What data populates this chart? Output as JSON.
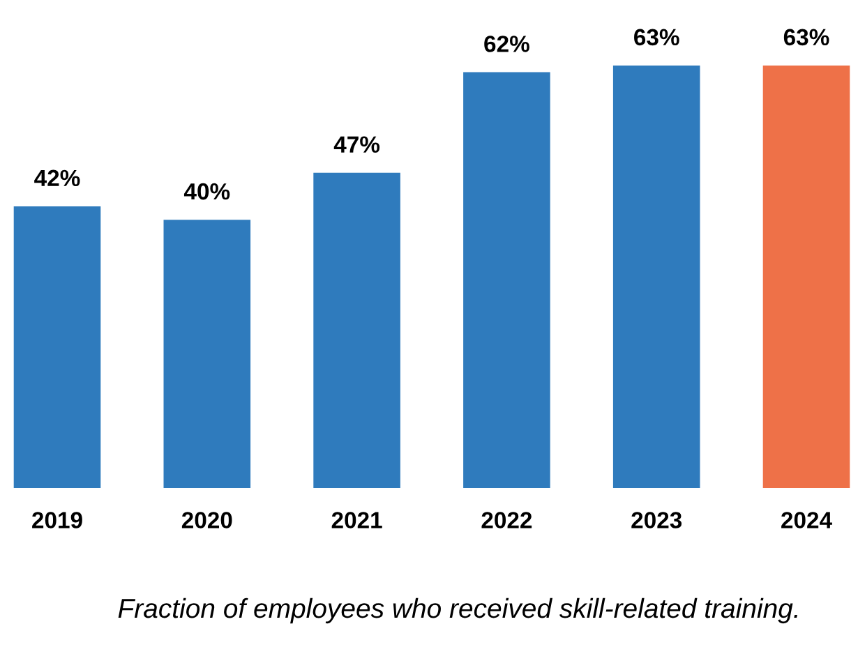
{
  "chart_data": {
    "type": "bar",
    "categories": [
      "2019",
      "2020",
      "2021",
      "2022",
      "2023",
      "2024"
    ],
    "values": [
      42,
      40,
      47,
      62,
      63,
      63
    ],
    "colors": [
      "#2f7bbd",
      "#2f7bbd",
      "#2f7bbd",
      "#2f7bbd",
      "#2f7bbd",
      "#ee7148"
    ],
    "value_labels": [
      "42%",
      "40%",
      "47%",
      "62%",
      "63%",
      "63%"
    ],
    "annotations": [
      "Fraction of employees who received skill-related training."
    ],
    "grid": false,
    "legend": false
  }
}
